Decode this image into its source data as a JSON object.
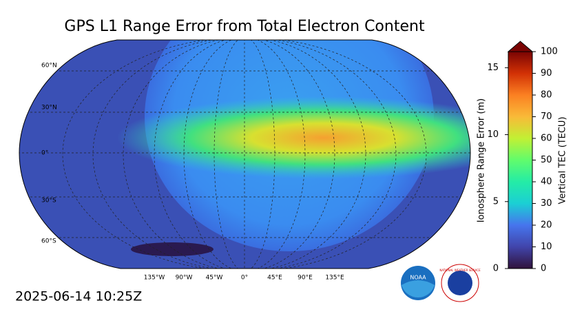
{
  "title": "GPS L1 Range Error from Total Electron Content",
  "timestamp": "2025-06-14 10:25Z",
  "map": {
    "lat_labels": [
      "60°N",
      "30°N",
      "0°",
      "30°S",
      "60°S"
    ],
    "lon_labels": [
      "135°W",
      "90°W",
      "45°W",
      "0°",
      "45°E",
      "90°E",
      "135°E"
    ]
  },
  "colorbar": {
    "left_label": "Ionosphere Range Error (m)",
    "left_ticks": [
      0,
      5,
      10,
      15
    ],
    "left_lim": [
      0,
      16.2
    ],
    "right_label": "Vertical TEC (TECU)",
    "right_ticks": [
      0,
      10,
      20,
      30,
      40,
      50,
      60,
      70,
      80,
      90,
      100
    ],
    "right_lim": [
      0,
      100
    ]
  },
  "logos": {
    "noaa": "NOAA",
    "nws": "NATIONAL WEATHER SERVICE"
  }
}
